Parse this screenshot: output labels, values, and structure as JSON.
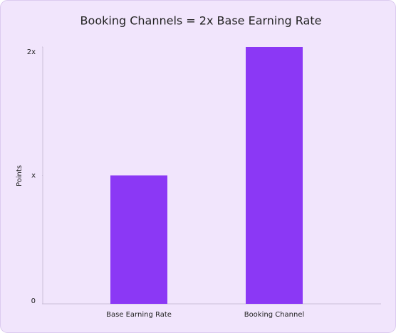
{
  "chart_data": {
    "type": "bar",
    "title": "Booking Channels = 2x Base Earning Rate",
    "y_label": "Points",
    "categories": [
      "Base Earning Rate",
      "Booking Channel"
    ],
    "values": [
      1,
      2
    ],
    "color": "#8b38f5",
    "ylim": [
      0,
      2
    ],
    "yticks": [
      0,
      {
        "value": 1,
        "label": "x"
      },
      {
        "value": 2,
        "label": "2x"
      }
    ],
    "grid": false
  }
}
